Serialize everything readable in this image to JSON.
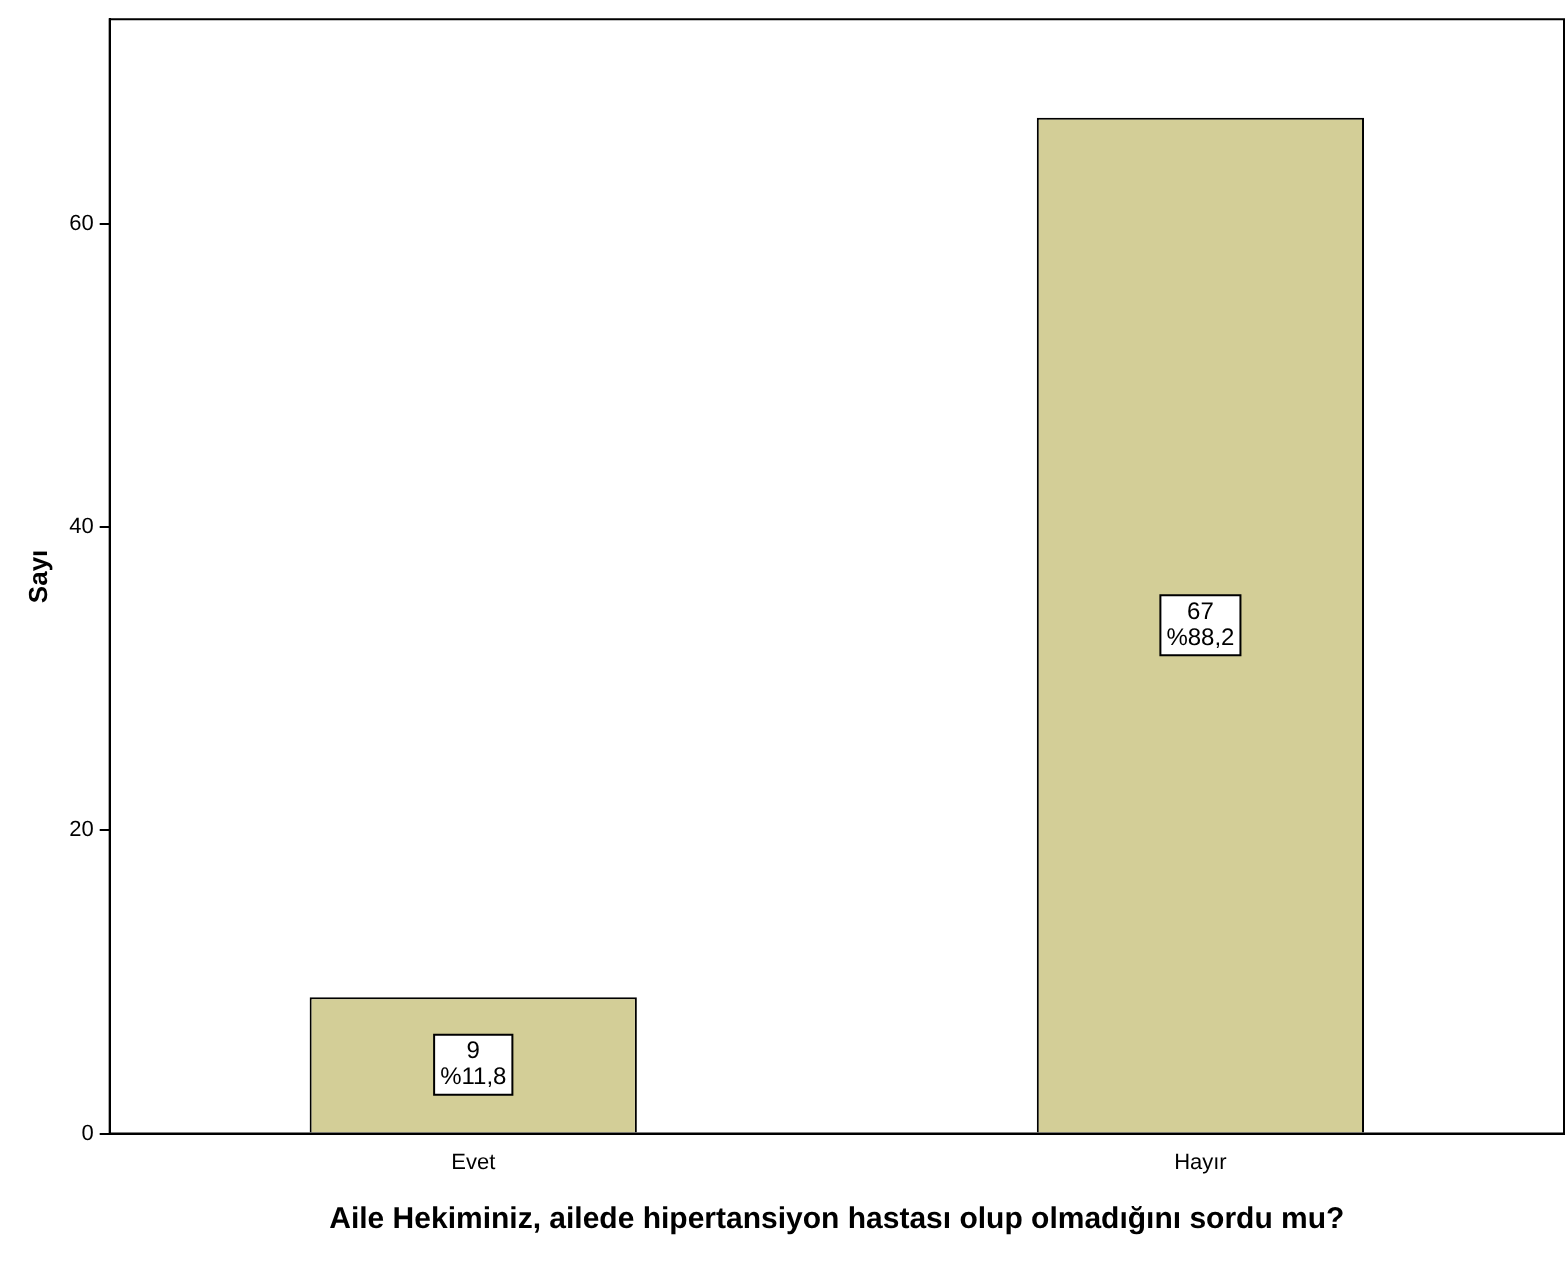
{
  "chart_data": {
    "type": "bar",
    "xlabel": "Aile Hekiminiz, ailede hipertansiyon hastası olup olmadığını sordu mu?",
    "ylabel": "Sayı",
    "categories": [
      "Evet",
      "Hayır"
    ],
    "values": [
      9,
      67
    ],
    "color": "#d3ce97",
    "value_labels": [
      "9\n%11,8",
      "67\n%88,2"
    ],
    "ylim": [
      0,
      73.5
    ],
    "yticks": [
      0,
      20,
      40,
      60
    ],
    "grid": false,
    "legend": false
  }
}
